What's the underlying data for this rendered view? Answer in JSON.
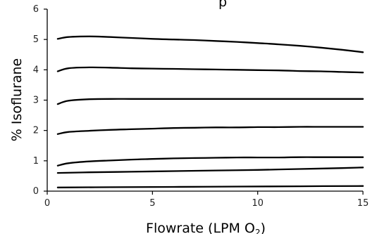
{
  "chart_data": {
    "type": "line",
    "title_fragment": "p",
    "xlabel": "Flowrate (LPM O",
    "xlabel_subscript": "2",
    "xlabel_close": ")",
    "ylabel": "% Isoflurane",
    "xlim": [
      0,
      15
    ],
    "ylim": [
      0,
      6
    ],
    "x_ticks": [
      "0",
      "5",
      "10",
      "15"
    ],
    "y_ticks": [
      "0",
      "1",
      "2",
      "3",
      "4",
      "5",
      "6"
    ],
    "x_tick_values": [
      0,
      5,
      10,
      15
    ],
    "y_tick_values": [
      0,
      1,
      2,
      3,
      4,
      5,
      6
    ],
    "grid": false,
    "line_color": "#000000",
    "series": [
      {
        "x": [
          0.5,
          1,
          2,
          3,
          4,
          5,
          6,
          7,
          8,
          9,
          10,
          11,
          12,
          13,
          14,
          15
        ],
        "y": [
          5.02,
          5.08,
          5.1,
          5.08,
          5.05,
          5.02,
          5.0,
          4.98,
          4.95,
          4.92,
          4.88,
          4.84,
          4.79,
          4.73,
          4.66,
          4.58
        ]
      },
      {
        "x": [
          0.5,
          1,
          2,
          3,
          4,
          5,
          6,
          7,
          8,
          9,
          10,
          11,
          12,
          13,
          14,
          15
        ],
        "y": [
          3.95,
          4.05,
          4.08,
          4.07,
          4.05,
          4.04,
          4.03,
          4.02,
          4.01,
          4.0,
          3.99,
          3.98,
          3.96,
          3.95,
          3.93,
          3.91
        ]
      },
      {
        "x": [
          0.5,
          1,
          2,
          3,
          4,
          5,
          6,
          7,
          8,
          9,
          10,
          11,
          12,
          13,
          14,
          15
        ],
        "y": [
          2.87,
          2.98,
          3.03,
          3.04,
          3.04,
          3.04,
          3.04,
          3.04,
          3.04,
          3.04,
          3.04,
          3.04,
          3.04,
          3.04,
          3.04,
          3.04
        ]
      },
      {
        "x": [
          0.5,
          1,
          2,
          3,
          4,
          5,
          6,
          7,
          8,
          9,
          10,
          11,
          12,
          13,
          14,
          15
        ],
        "y": [
          1.88,
          1.95,
          1.99,
          2.02,
          2.04,
          2.06,
          2.08,
          2.09,
          2.1,
          2.1,
          2.11,
          2.11,
          2.12,
          2.12,
          2.12,
          2.12
        ]
      },
      {
        "x": [
          0.5,
          1,
          2,
          3,
          4,
          5,
          6,
          7,
          8,
          9,
          10,
          11,
          12,
          13,
          14,
          15
        ],
        "y": [
          0.84,
          0.92,
          0.98,
          1.01,
          1.04,
          1.06,
          1.08,
          1.09,
          1.1,
          1.11,
          1.11,
          1.11,
          1.12,
          1.12,
          1.12,
          1.12
        ]
      },
      {
        "x": [
          0.5,
          2,
          4,
          6,
          8,
          10,
          12,
          14,
          15
        ],
        "y": [
          0.6,
          0.62,
          0.64,
          0.66,
          0.68,
          0.7,
          0.73,
          0.76,
          0.78
        ]
      },
      {
        "x": [
          0.5,
          3,
          6,
          9,
          12,
          15
        ],
        "y": [
          0.12,
          0.13,
          0.14,
          0.15,
          0.16,
          0.17
        ]
      }
    ]
  }
}
